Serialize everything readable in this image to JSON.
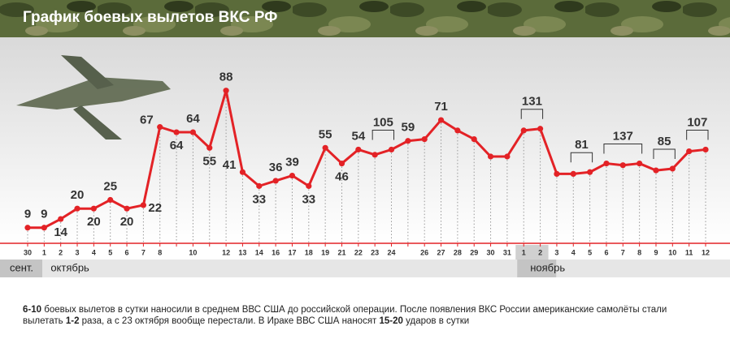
{
  "chart_data": {
    "type": "line",
    "title": "График боевых вылетов ВКС РФ",
    "categories": [
      "30",
      "1",
      "2",
      "3",
      "4",
      "5",
      "6",
      "7",
      "8",
      null,
      "10",
      null,
      "12",
      "13",
      "14",
      "16",
      "17",
      "18",
      "19",
      "21",
      "22",
      "23",
      "24",
      null,
      "26",
      "27",
      "28",
      "29",
      "30",
      "31",
      "1",
      "2",
      "3",
      "4",
      "5",
      "6",
      "7",
      "8",
      "9",
      "10",
      "11",
      "12"
    ],
    "values": [
      9,
      9,
      14,
      20,
      20,
      25,
      20,
      22,
      67,
      64,
      64,
      55,
      88,
      41,
      33,
      36,
      39,
      33,
      55,
      46,
      54,
      51,
      54,
      59,
      60,
      71,
      65,
      60,
      50,
      50,
      65,
      66,
      40,
      40,
      41,
      46,
      45,
      46,
      42,
      43,
      53,
      54
    ],
    "value_labels": [
      "9",
      "9",
      "14",
      "20",
      "20",
      "25",
      "20",
      "22",
      "67",
      "64",
      "64",
      "55",
      "88",
      "41",
      "33",
      "36",
      "39",
      "33",
      "55",
      "46",
      "54",
      null,
      null,
      "59",
      null,
      "71",
      null,
      null,
      null,
      null,
      null,
      null,
      null,
      null,
      null,
      null,
      null,
      null,
      null,
      null,
      null,
      null
    ],
    "color": "#e32226",
    "group_totals": [
      {
        "value": 105,
        "start": 21,
        "end": 22
      },
      {
        "value": 131,
        "start": 30,
        "end": 31
      },
      {
        "value": 81,
        "start": 33,
        "end": 34
      },
      {
        "value": 137,
        "start": 35,
        "end": 37
      },
      {
        "value": 85,
        "start": 38,
        "end": 39
      },
      {
        "value": 107,
        "start": 40,
        "end": 41
      }
    ],
    "months": [
      {
        "label": "сент.",
        "start": 0
      },
      {
        "label": "октябрь",
        "start": 1
      },
      {
        "label": "ноябрь",
        "start": 30
      }
    ],
    "footnote": [
      [
        {
          "text": "6-10",
          "bold": true
        },
        {
          "text": " боевых вылетов в сутки наносили в среднем ВВС США до российской операции. После появления ВКС России американские самолёты стали",
          "bold": false
        }
      ],
      [
        {
          "text": "вылетать ",
          "bold": false
        },
        {
          "text": "1-2",
          "bold": true
        },
        {
          "text": " раза, а с 23 октября вообще перестали. В Ираке ВВС США наносят ",
          "bold": false
        },
        {
          "text": "15-20",
          "bold": true
        },
        {
          "text": " ударов в сутки",
          "bold": false
        }
      ]
    ]
  }
}
